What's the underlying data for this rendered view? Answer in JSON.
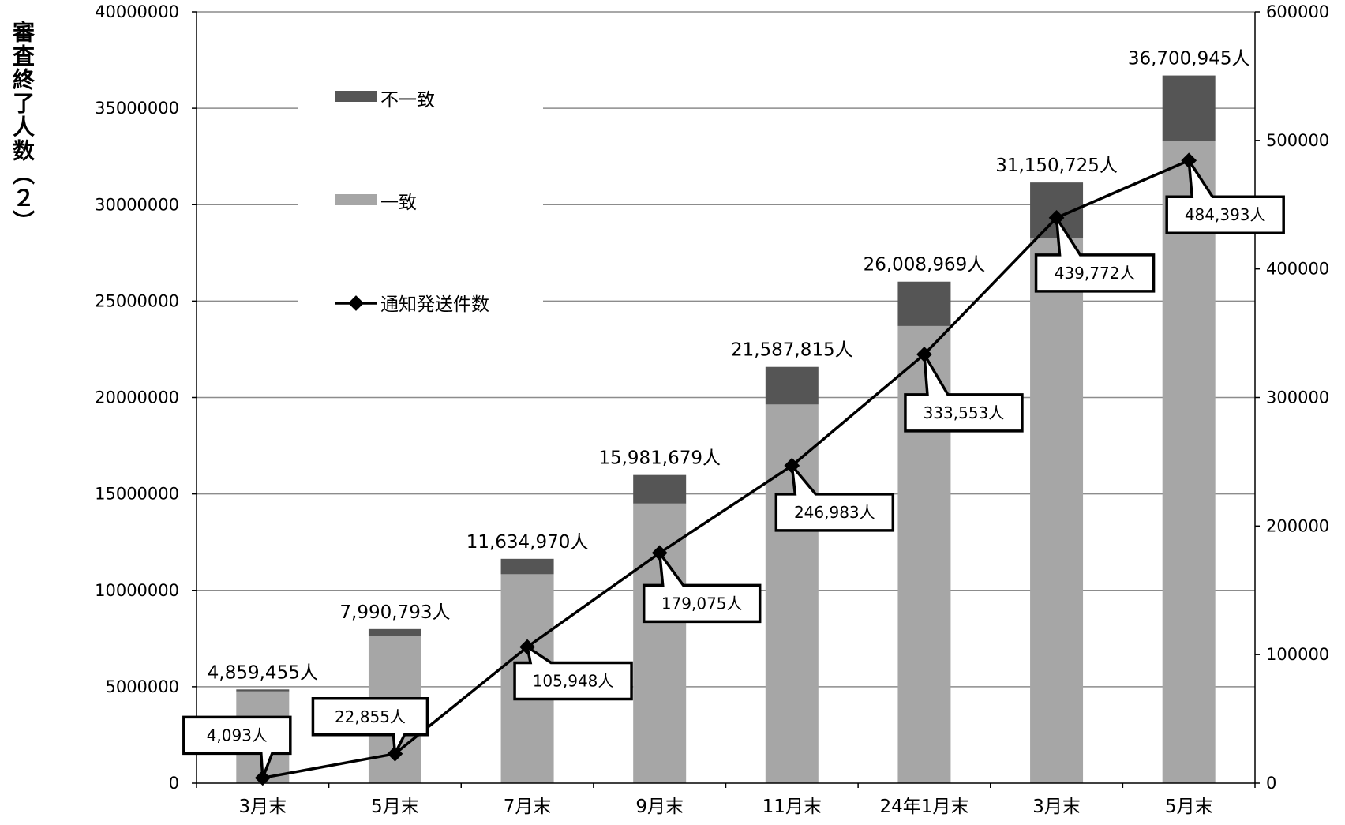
{
  "chart_data": {
    "type": "bar",
    "ylabel": "審査終了人数（２）",
    "categories": [
      "3月末",
      "5月末",
      "7月末",
      "9月末",
      "11月末",
      "24年1月末",
      "3月末",
      "5月末"
    ],
    "series": [
      {
        "name": "不一致",
        "values": [
          100000,
          360000,
          800000,
          1480000,
          1950000,
          2300000,
          2900000,
          3400000
        ]
      },
      {
        "name": "一致",
        "values": [
          4759455,
          7630793,
          10834970,
          14501679,
          19637815,
          23708969,
          28250725,
          33300945
        ]
      },
      {
        "name": "通知発送件数",
        "axis": "right",
        "values": [
          4093,
          22855,
          105948,
          179075,
          246983,
          333553,
          439772,
          484393
        ]
      }
    ],
    "totals": [
      4859455,
      7990793,
      11634970,
      15981679,
      21587815,
      26008969,
      31150725,
      36700945
    ],
    "total_labels": [
      "4,859,455人",
      "7,990,793人",
      "11,634,970人",
      "15,981,679人",
      "21,587,815人",
      "26,008,969人",
      "31,150,725人",
      "36,700,945人"
    ],
    "line_labels": [
      "4,093人",
      "22,855人",
      "105,948人",
      "179,075人",
      "246,983人",
      "333,553人",
      "439,772人",
      "484,393人"
    ],
    "left_ylim": [
      0,
      40000000
    ],
    "right_ylim": [
      0,
      600000
    ],
    "left_ticks": [
      "0",
      "5000000",
      "10000000",
      "15000000",
      "20000000",
      "25000000",
      "30000000",
      "35000000",
      "40000000"
    ],
    "right_ticks": [
      "0",
      "100000",
      "200000",
      "300000",
      "400000",
      "500000",
      "600000"
    ],
    "legend": [
      "不一致",
      "一致",
      "通知発送件数"
    ],
    "legend_placement": "top-left",
    "grid": true,
    "colors": {
      "mismatch": "#555555",
      "match": "#a6a6a6",
      "line": "#000000",
      "grid": "#8c8c8c"
    }
  }
}
